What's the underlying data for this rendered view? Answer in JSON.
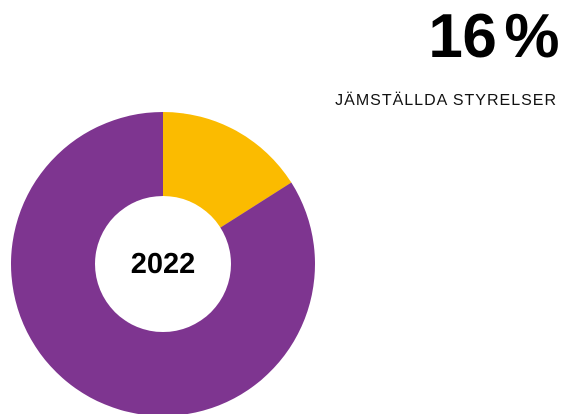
{
  "stat": {
    "value": "16",
    "unit": "%",
    "caption": "JÄMSTÄLLDA STYRELSER"
  },
  "chart_data": {
    "type": "pie",
    "donut": true,
    "center_label": "2022",
    "categories": [
      "",
      ""
    ],
    "values": [
      16,
      84
    ],
    "colors": [
      "#fbbb00",
      "#7e3590"
    ],
    "start_angle_deg": 0,
    "direction": "clockwise"
  }
}
